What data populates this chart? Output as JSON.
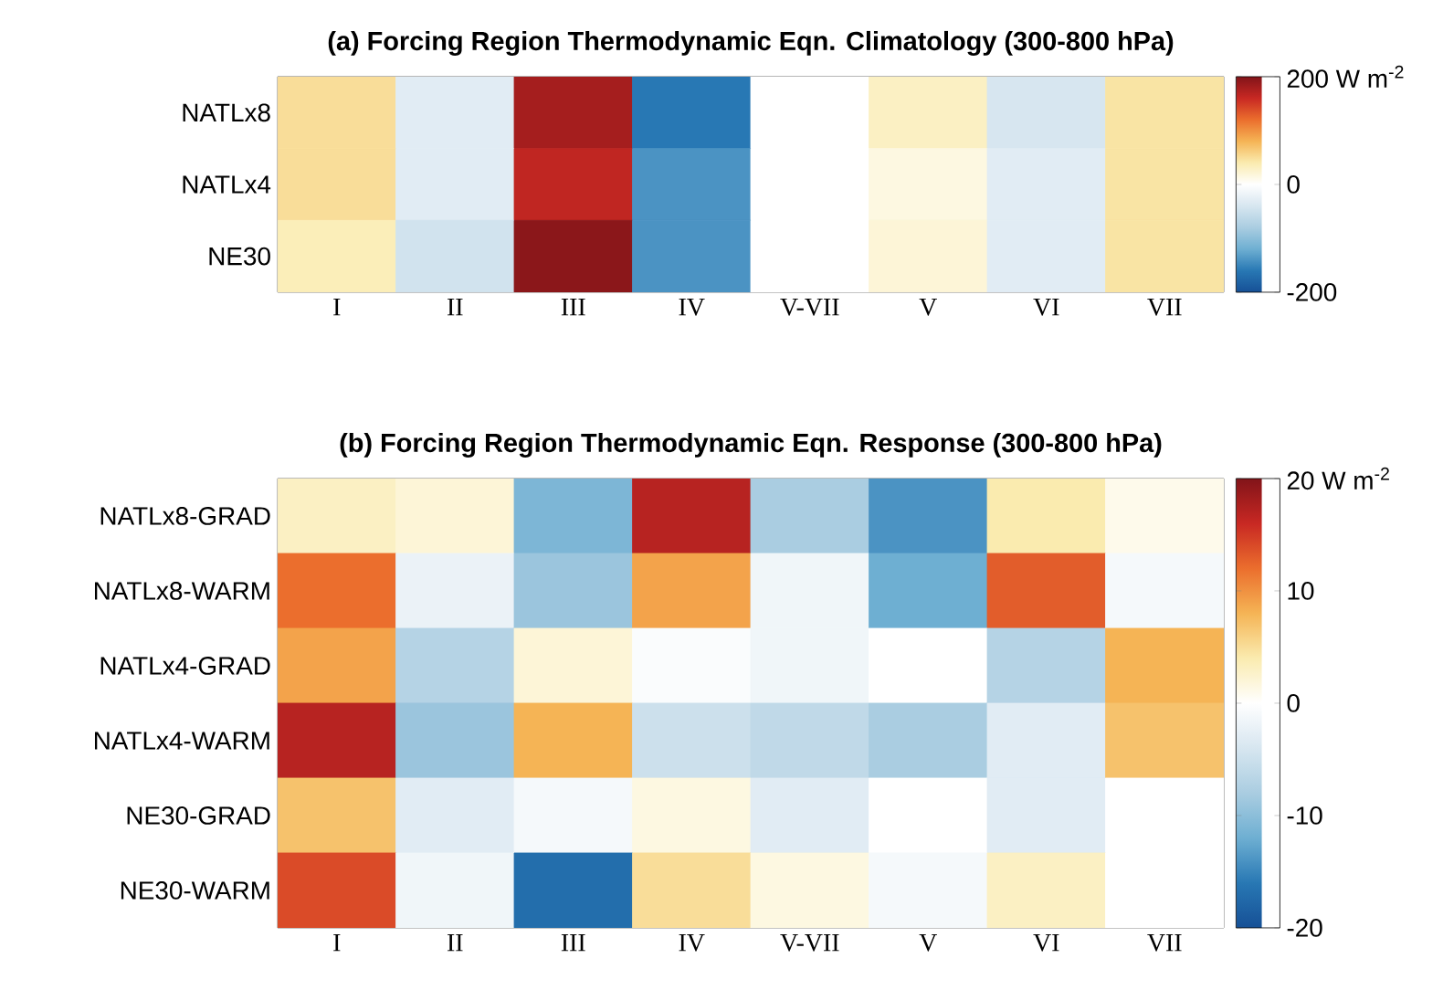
{
  "chart_data": [
    {
      "type": "heatmap",
      "title": "**(a) Forcing Region Thermodynamic Eqn. Climatology (300-800 hPa)**",
      "categories": [
        "I",
        "II",
        "III",
        "IV",
        "V-VII",
        "V",
        "VI",
        "VII"
      ],
      "y_categories": [
        "NATLx8",
        "NATLx4",
        "NE30"
      ],
      "cells": [
        [
          50,
          -30,
          180,
          -160,
          0,
          30,
          -40,
          45
        ],
        [
          50,
          -30,
          165,
          -140,
          0,
          15,
          -30,
          45
        ],
        [
          35,
          -45,
          195,
          -140,
          0,
          20,
          -30,
          45
        ]
      ],
      "clim": [
        -200,
        200
      ],
      "cticks": [
        -200,
        0,
        {
          "value": 200,
          "label": "200 W m$^{-2}$"
        }
      ]
    },
    {
      "type": "heatmap",
      "title": "**(b) Forcing Region Thermodynamic Eqn. Response (300-800 hPa)**",
      "categories": [
        "I",
        "II",
        "III",
        "IV",
        "V-VII",
        "V",
        "VI",
        "VII"
      ],
      "y_categories": [
        "NATLx8-GRAD",
        "NATLx8-WARM",
        "NATLx4-GRAD",
        "NATLx4-WARM",
        "NE30-GRAD",
        "NE30-WARM"
      ],
      "cells": [
        [
          3,
          2,
          -11,
          17,
          -8,
          -14,
          4,
          1
        ],
        [
          12,
          -2,
          -9,
          9,
          -1.5,
          -12,
          13,
          -1
        ],
        [
          9,
          -7,
          2,
          -0.5,
          -1.5,
          0,
          -7,
          8
        ],
        [
          17,
          -9,
          8,
          -5,
          -6,
          -8,
          -3,
          7
        ],
        [
          7,
          -3,
          -1,
          1.5,
          -3,
          0,
          -3,
          0
        ],
        [
          14,
          -1.5,
          -17,
          5,
          1.5,
          -1,
          3,
          0
        ]
      ],
      "clim": [
        -20,
        20
      ],
      "cticks": [
        -20,
        -10,
        0,
        10,
        {
          "value": 20,
          "label": "20 W m$^{-2}$"
        }
      ]
    }
  ]
}
